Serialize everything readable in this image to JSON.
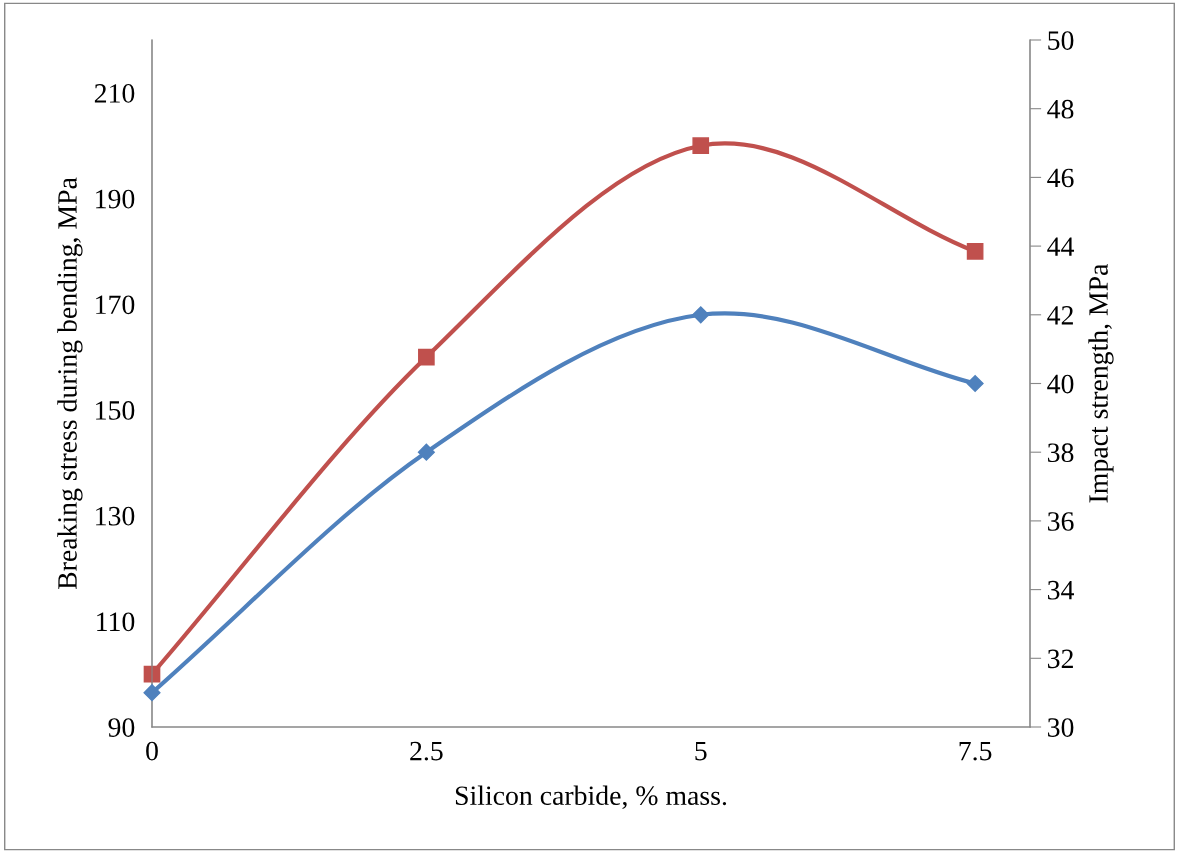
{
  "chart_data": {
    "type": "line",
    "xlabel": "Silicon carbide, % mass.",
    "ylabel": "Breaking stress during bending, MPa",
    "y2label": "Impact strength, MPa",
    "x": [
      0,
      2.5,
      5,
      7.5
    ],
    "series": [
      {
        "color": "#c0504d",
        "values": [
          100,
          160,
          200,
          180
        ],
        "marker": "square"
      },
      {
        "color": "#4f81bd",
        "values": [
          31,
          38,
          42,
          40
        ],
        "marker": "diamond",
        "axis": "y2"
      }
    ],
    "xlim": [
      0,
      8
    ],
    "xticks": [
      0,
      {
        "value": 2.5,
        "label": "2.5"
      },
      5,
      {
        "value": 7.5,
        "label": "7.5"
      }
    ],
    "ylim": [
      90,
      220
    ],
    "yticks": [
      90,
      110,
      130,
      150,
      170,
      190,
      210
    ],
    "y2lim": [
      30,
      50
    ],
    "y2ticks": [
      30,
      32,
      34,
      36,
      38,
      40,
      42,
      44,
      46,
      48,
      50
    ],
    "grid": false,
    "legend": false,
    "line_style": "solid"
  }
}
